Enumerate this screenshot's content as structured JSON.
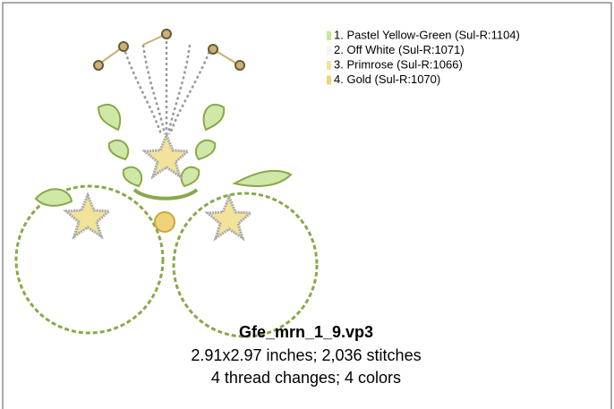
{
  "design": {
    "threads": [
      {
        "label": "1.  Pastel Yellow-Green (Sul-R:1104)",
        "color": "#c8e89a"
      },
      {
        "label": "2.  Off White (Sul-R:1071)",
        "color": "#f6f4ea"
      },
      {
        "label": "3.  Primrose (Sul-R:1066)",
        "color": "#f3e39a"
      },
      {
        "label": "4.  Gold (Sul-R:1070)",
        "color": "#f0d27a"
      }
    ],
    "filename": "Gfe_mrn_1_9.vp3",
    "size_info": "2.91x2.97 inches; 2,036 stitches",
    "thread_info": "4 thread changes; 4 colors"
  }
}
